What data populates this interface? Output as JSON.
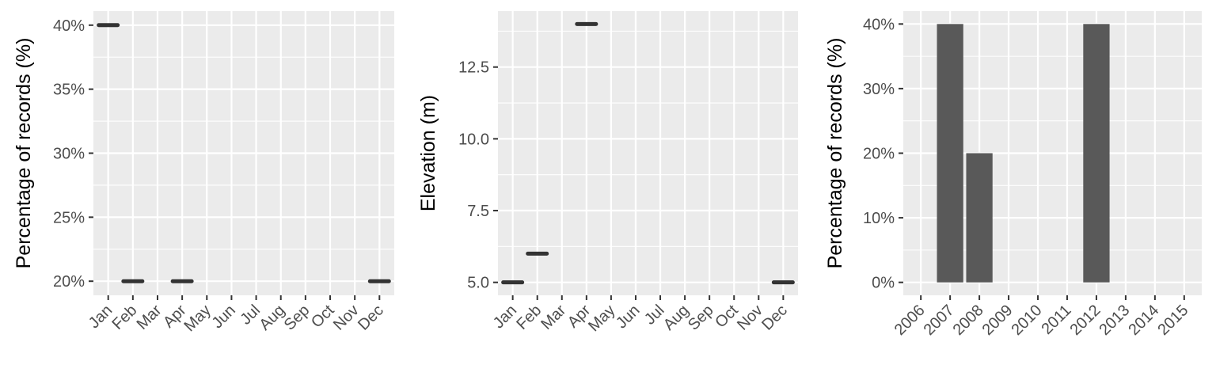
{
  "chart_data": [
    {
      "type": "scatter",
      "marker": "horizontal-dash",
      "categories": [
        "Jan",
        "Feb",
        "Mar",
        "Apr",
        "May",
        "Jun",
        "Jul",
        "Aug",
        "Sep",
        "Oct",
        "Nov",
        "Dec"
      ],
      "points": [
        {
          "x": "Jan",
          "y": 40
        },
        {
          "x": "Feb",
          "y": 20
        },
        {
          "x": "Apr",
          "y": 20
        },
        {
          "x": "Dec",
          "y": 20
        }
      ],
      "ylabel": "Percentage of records (%)",
      "ylim": [
        18.9,
        41.1
      ],
      "yticks": [
        20,
        25,
        30,
        35,
        40
      ],
      "ytick_labels": [
        "20%",
        "25%",
        "30%",
        "35%",
        "40%"
      ],
      "grid": true
    },
    {
      "type": "scatter",
      "marker": "horizontal-dash",
      "categories": [
        "Jan",
        "Feb",
        "Mar",
        "Apr",
        "May",
        "Jun",
        "Jul",
        "Aug",
        "Sep",
        "Oct",
        "Nov",
        "Dec"
      ],
      "points": [
        {
          "x": "Jan",
          "y": 5
        },
        {
          "x": "Feb",
          "y": 6
        },
        {
          "x": "Apr",
          "y": 14
        },
        {
          "x": "Dec",
          "y": 5
        }
      ],
      "ylabel": "Elevation (m)",
      "ylim": [
        4.55,
        14.45
      ],
      "yticks": [
        5,
        7.5,
        10,
        12.5
      ],
      "ytick_labels": [
        "5.0",
        "7.5",
        "10.0",
        "12.5"
      ],
      "grid": true
    },
    {
      "type": "bar",
      "categories": [
        "2006",
        "2007",
        "2008",
        "2009",
        "2010",
        "2011",
        "2012",
        "2013",
        "2014",
        "2015"
      ],
      "values": [
        0,
        40,
        20,
        0,
        0,
        0,
        40,
        0,
        0,
        0
      ],
      "ylabel": "Percentage of records (%)",
      "ylim": [
        -2,
        42
      ],
      "yticks": [
        0,
        10,
        20,
        30,
        40
      ],
      "ytick_labels": [
        "0%",
        "10%",
        "20%",
        "30%",
        "40%"
      ],
      "bar_color": "#595959",
      "grid": true
    }
  ],
  "colors": {
    "panel_bg": "#ebebeb",
    "grid": "#ffffff",
    "marker": "#333333",
    "tick": "#333333"
  }
}
